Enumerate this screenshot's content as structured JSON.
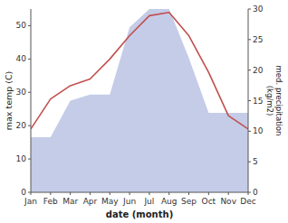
{
  "chart_data": {
    "type": "line",
    "categories": [
      "Jan",
      "Feb",
      "Mar",
      "Apr",
      "May",
      "Jun",
      "Jul",
      "Aug",
      "Sep",
      "Oct",
      "Nov",
      "Dec"
    ],
    "series": [
      {
        "type": "area",
        "axis": "y2",
        "color": "#c5cce8",
        "values": [
          9,
          9,
          15,
          16,
          16,
          27,
          30,
          30,
          22,
          13,
          13,
          13
        ]
      },
      {
        "type": "line",
        "color": "#c0504d",
        "values": [
          19,
          28,
          32,
          34,
          40,
          47,
          53,
          54,
          47,
          36,
          23,
          19
        ]
      }
    ],
    "xlabel": "date (month)",
    "ylabel": "max temp (C)",
    "y2label": "med. precipitation\n(kg/m2)",
    "ylim": [
      0,
      55
    ],
    "yticks": [
      0,
      10,
      20,
      30,
      40,
      50
    ],
    "y2lim": [
      0,
      30
    ],
    "y2ticks": [
      0,
      5,
      10,
      15,
      20,
      25,
      30
    ],
    "grid": false
  }
}
